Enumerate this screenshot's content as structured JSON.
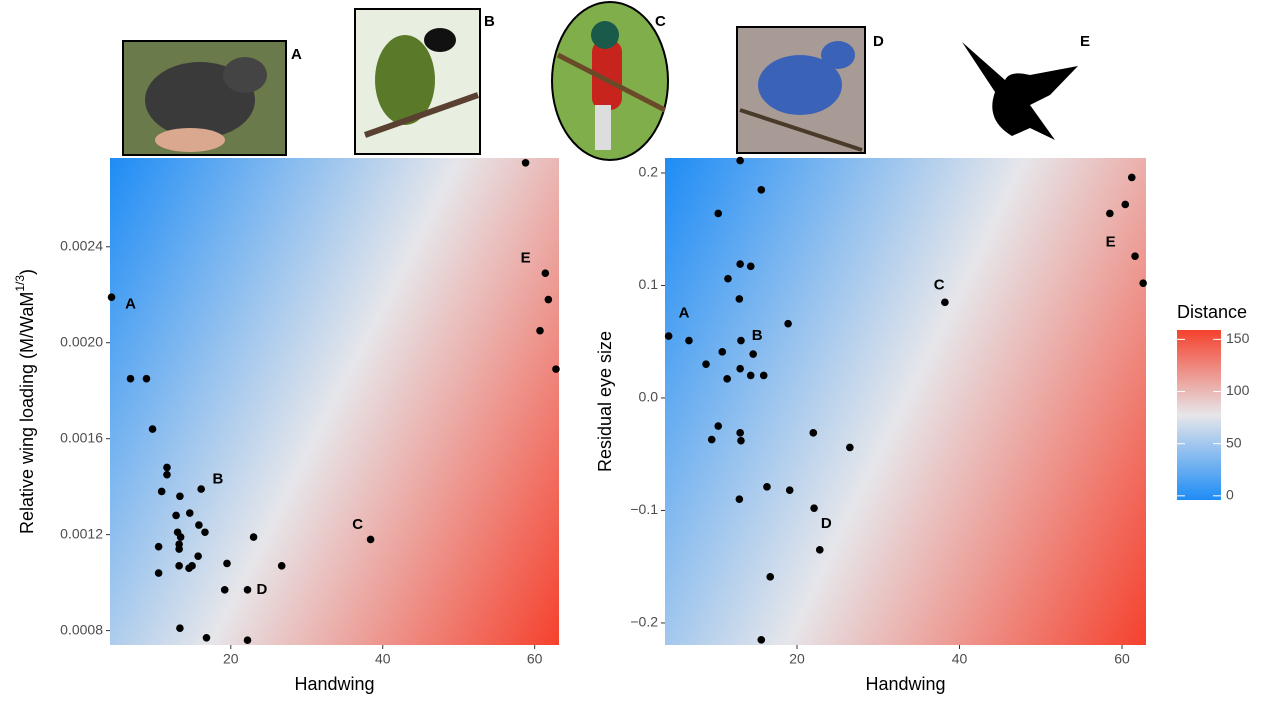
{
  "photos": [
    {
      "label": "A"
    },
    {
      "label": "B"
    },
    {
      "label": "C"
    },
    {
      "label": "D"
    },
    {
      "label": "E"
    }
  ],
  "legend": {
    "title": "Distance",
    "lim": [
      -4,
      159
    ],
    "ticks": [
      0,
      50,
      100,
      150
    ],
    "colors": [
      "#1e8cf5",
      "#e6e6ea",
      "#f5412d"
    ]
  },
  "chart_data": [
    {
      "type": "scatter",
      "xlabel": "Handwing",
      "ylabel": {
        "main": "Relative wing loading (M/WaM",
        "sup": "1/3",
        "end": ")"
      },
      "xlim": [
        4.1,
        63.2
      ],
      "ylim": [
        0.00074,
        0.00277
      ],
      "xticks": [
        20,
        40,
        60
      ],
      "yticks": [
        0.0008,
        0.0012,
        0.0016,
        {
          "value": 0.002,
          "label": "0.0020"
        },
        0.0024
      ],
      "color": "#000000",
      "x": [
        4.3,
        6.8,
        8.9,
        9.7,
        11.6,
        11.6,
        10.9,
        13.3,
        16.1,
        14.6,
        12.8,
        15.8,
        13.0,
        16.6,
        13.4,
        13.2,
        13.2,
        10.5,
        23.0,
        15.7,
        19.5,
        13.2,
        14.5,
        14.9,
        26.7,
        10.5,
        19.2,
        22.2,
        38.4,
        13.3,
        16.8,
        22.2,
        58.8,
        61.4,
        61.8,
        60.7,
        62.8
      ],
      "values": [
        0.00219,
        0.00185,
        0.00185,
        0.00164,
        0.00148,
        0.00145,
        0.00138,
        0.00136,
        0.00139,
        0.00129,
        0.00128,
        0.00124,
        0.00121,
        0.00121,
        0.00119,
        0.00116,
        0.00114,
        0.00115,
        0.00119,
        0.00111,
        0.00108,
        0.00107,
        0.00106,
        0.00107,
        0.00107,
        0.00104,
        0.00097,
        0.00097,
        0.00118,
        0.00081,
        0.00077,
        0.00076,
        0.00275,
        0.00229,
        0.00218,
        0.00205,
        0.00189
      ],
      "annotations": [
        {
          "text": "A",
          "x": 6.8,
          "y": 0.00216
        },
        {
          "text": "B",
          "x": 18.3,
          "y": 0.00143
        },
        {
          "text": "C",
          "x": 36.7,
          "y": 0.00124
        },
        {
          "text": "D",
          "x": 24.1,
          "y": 0.00097
        },
        {
          "text": "E",
          "x": 58.8,
          "y": 0.00235
        }
      ]
    },
    {
      "type": "scatter",
      "xlabel": "Handwing",
      "ylabel": {
        "main": "Residual eye size"
      },
      "xlim": [
        3.75,
        62.95
      ],
      "ylim": [
        -0.2196,
        0.2133
      ],
      "xticks": [
        20,
        40,
        60
      ],
      "yticks": [
        {
          "value": -0.2,
          "label": "−0.2"
        },
        {
          "value": -0.1,
          "label": "−0.1"
        },
        {
          "value": 0,
          "label": "0.0"
        },
        0.1,
        0.2
      ],
      "color": "#000000",
      "x": [
        4.2,
        6.7,
        13.0,
        10.3,
        15.6,
        13.0,
        14.3,
        11.5,
        12.9,
        18.9,
        13.1,
        10.8,
        14.6,
        8.8,
        13.0,
        15.9,
        14.3,
        11.4,
        10.3,
        13.0,
        13.1,
        9.5,
        22.0,
        26.5,
        16.3,
        19.1,
        12.9,
        22.1,
        22.8,
        16.7,
        15.6,
        38.2,
        61.2,
        60.4,
        58.5,
        61.6,
        62.6
      ],
      "values": [
        0.055,
        0.051,
        0.211,
        0.164,
        0.185,
        0.119,
        0.117,
        0.106,
        0.088,
        0.066,
        0.051,
        0.041,
        0.039,
        0.03,
        0.026,
        0.02,
        0.02,
        0.017,
        -0.025,
        -0.031,
        -0.038,
        -0.037,
        -0.031,
        -0.044,
        -0.079,
        -0.082,
        -0.09,
        -0.098,
        -0.135,
        -0.159,
        -0.215,
        0.085,
        0.196,
        0.172,
        0.164,
        0.126,
        0.102
      ],
      "annotations": [
        {
          "text": "A",
          "x": 6.1,
          "y": 0.075
        },
        {
          "text": "B",
          "x": 15.1,
          "y": 0.055
        },
        {
          "text": "C",
          "x": 37.5,
          "y": 0.1
        },
        {
          "text": "D",
          "x": 23.6,
          "y": -0.112
        },
        {
          "text": "E",
          "x": 58.6,
          "y": 0.138
        }
      ]
    }
  ]
}
